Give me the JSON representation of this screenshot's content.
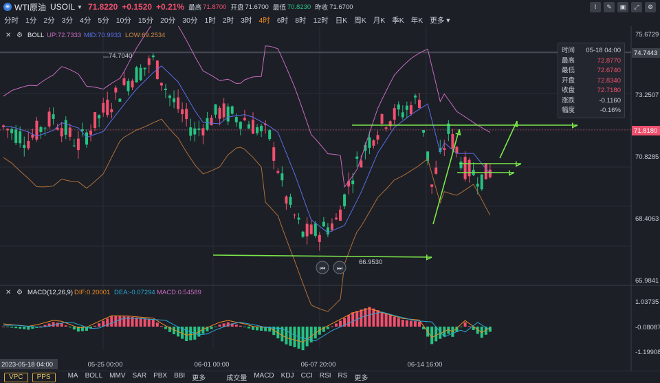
{
  "header": {
    "symbol_name": "WTI原油",
    "symbol_code": "USOIL",
    "price": "71.8220",
    "change": "+0.1520",
    "change_pct": "+0.21%",
    "high_label": "最高",
    "high": "71.8700",
    "open_label": "开盘",
    "open": "71.6700",
    "low_label": "最低",
    "low": "70.8230",
    "prev_close_label": "昨收",
    "prev_close": "71.6700"
  },
  "toolbar_icons": [
    "chart-type-icon",
    "draw-icon",
    "delete-icon",
    "expand-icon",
    "settings-icon"
  ],
  "periods": [
    "分时",
    "1分",
    "2分",
    "3分",
    "4分",
    "5分",
    "10分",
    "15分",
    "20分",
    "30分",
    "1时",
    "2时",
    "3时",
    "4时",
    "6时",
    "8时",
    "12时",
    "日K",
    "周K",
    "月K",
    "季K",
    "年K",
    "更多"
  ],
  "active_period": "4时",
  "boll": {
    "name": "BOLL",
    "up_label": "UP:72.7333",
    "mid_label": "MID:70.9933",
    "low_label": "LOW:69.2534"
  },
  "macd": {
    "name": "MACD(12,26,9)",
    "dif_label": "DIF:0.20001",
    "dea_label": "DEA:-0.07294",
    "macd_label": "MACD:0.54589"
  },
  "price_axis": [
    "75.6729",
    "73.2507",
    "70.8285",
    "68.4063",
    "65.9841"
  ],
  "macd_axis": [
    "1.03735",
    "-0.08087",
    "-1.19908"
  ],
  "price_tags": {
    "hover": "74.7443",
    "current": "71.8180"
  },
  "annotations": {
    "high_mark": "74.7040",
    "low_mark": "66.9530"
  },
  "x_labels": [
    "2023-05-18 04:00",
    "05-25 00:00",
    "06-01 00:00",
    "06-07 20:00",
    "06-14 16:00"
  ],
  "info": {
    "rows": [
      {
        "k": "时间",
        "v": "05-18 04:00"
      },
      {
        "k": "最高",
        "v": "72.8770"
      },
      {
        "k": "最低",
        "v": "72.6740"
      },
      {
        "k": "开盘",
        "v": "72.8340"
      },
      {
        "k": "收盘",
        "v": "72.7180"
      },
      {
        "k": "涨跌",
        "v": "-0.1160"
      },
      {
        "k": "幅度",
        "v": "-0.16%"
      }
    ]
  },
  "bottom": {
    "buttons": [
      "VPC",
      "PPS"
    ],
    "main_indicators": [
      "MA",
      "BOLL",
      "MMV",
      "SAR",
      "PBX",
      "BBI",
      "更多"
    ],
    "sub_indicators": [
      "成交量",
      "MACD",
      "KDJ",
      "CCI",
      "RSI",
      "RS",
      "更多"
    ]
  },
  "colors": {
    "up": "#f0506e",
    "down": "#26c281",
    "boll_up": "#c86bc0",
    "boll_mid": "#5b6ee8",
    "boll_low": "#b0703a",
    "arrow": "#7de84a",
    "dif": "#f08a24",
    "dea": "#2aa7d6"
  }
}
